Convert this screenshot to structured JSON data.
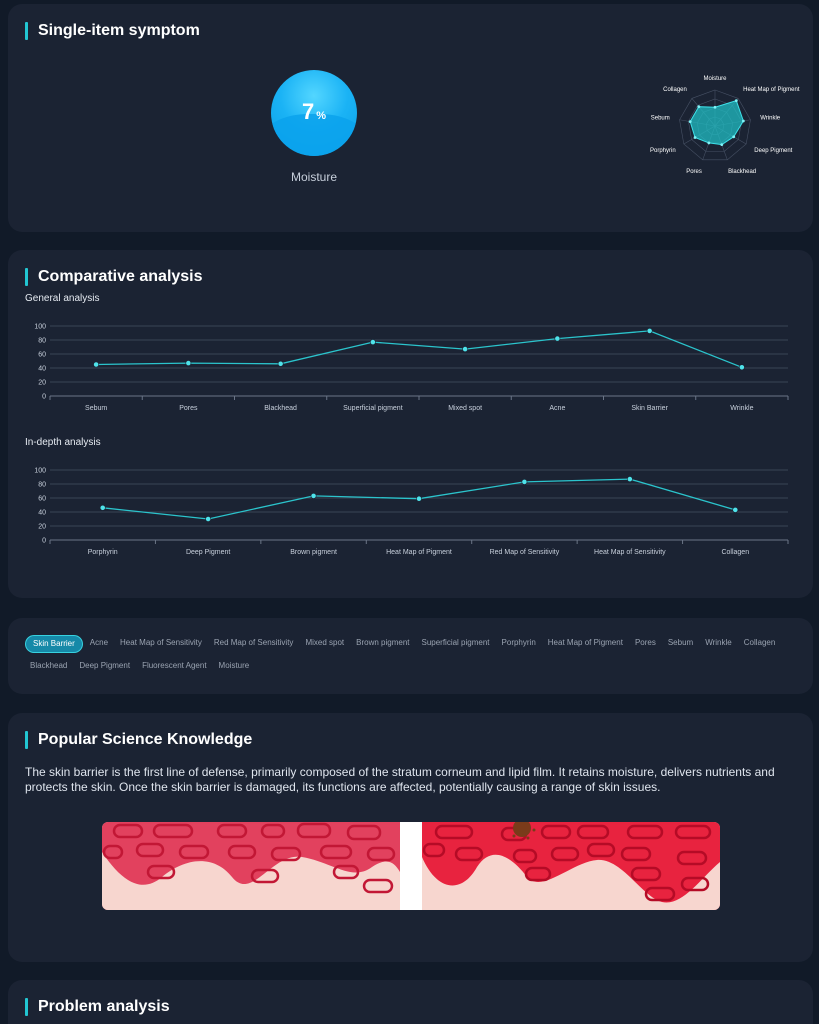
{
  "symptom": {
    "title": "Single-item symptom",
    "moisture_value": "7",
    "moisture_unit": "%",
    "moisture_label": "Moisture",
    "radar": {
      "labels": [
        "Moisture",
        "Heat Map of Pigment",
        "Wrinkle",
        "Deep Pigment",
        "Blackhead",
        "Pores",
        "Porphyrin",
        "Sebum",
        "Collagen"
      ],
      "values": [
        0.52,
        0.92,
        0.8,
        0.6,
        0.55,
        0.5,
        0.64,
        0.7,
        0.7
      ]
    }
  },
  "comparative": {
    "title": "Comparative analysis"
  },
  "chart_data": [
    {
      "type": "line",
      "title": "General analysis",
      "categories": [
        "Sebum",
        "Pores",
        "Blackhead",
        "Superficial pigment",
        "Mixed spot",
        "Acne",
        "Skin Barrier",
        "Wrinkle"
      ],
      "values": [
        45,
        47,
        46,
        77,
        67,
        82,
        93,
        41
      ],
      "ylim": [
        0,
        100
      ],
      "yticks": [
        "0",
        "20",
        "40",
        "60",
        "80",
        "100"
      ],
      "color": "#2bc4cc",
      "grid": true
    },
    {
      "type": "line",
      "title": "In-depth analysis",
      "categories": [
        "Porphyrin",
        "Deep Pigment",
        "Brown pigment",
        "Heat Map of Pigment",
        "Red Map of Sensitivity",
        "Heat Map of Sensitivity",
        "Collagen"
      ],
      "values": [
        46,
        30,
        63,
        59,
        83,
        87,
        43
      ],
      "ylim": [
        0,
        100
      ],
      "yticks": [
        "0",
        "20",
        "40",
        "60",
        "80",
        "100"
      ],
      "color": "#2bc4cc",
      "grid": true
    }
  ],
  "tabs": {
    "active": "Skin Barrier",
    "items": [
      "Skin Barrier",
      "Acne",
      "Heat Map of Sensitivity",
      "Red Map of Sensitivity",
      "Mixed spot",
      "Brown pigment",
      "Superficial pigment",
      "Porphyrin",
      "Heat Map of Pigment",
      "Pores",
      "Sebum",
      "Wrinkle",
      "Collagen",
      "Blackhead",
      "Deep Pigment",
      "Fluorescent Agent",
      "Moisture"
    ]
  },
  "science": {
    "title": "Popular Science Knowledge",
    "text": "The skin barrier is the first line of defense, primarily composed of the stratum corneum and lipid film. It retains moisture, delivers nutrients and protects the skin. Once the skin barrier is damaged, its functions are affected, potentially causing a range of skin issues."
  },
  "problem": {
    "title": "Problem analysis"
  },
  "colors": {
    "accent": "#22c6d2",
    "card_bg": "#1b2333",
    "page_bg": "#111a28"
  }
}
